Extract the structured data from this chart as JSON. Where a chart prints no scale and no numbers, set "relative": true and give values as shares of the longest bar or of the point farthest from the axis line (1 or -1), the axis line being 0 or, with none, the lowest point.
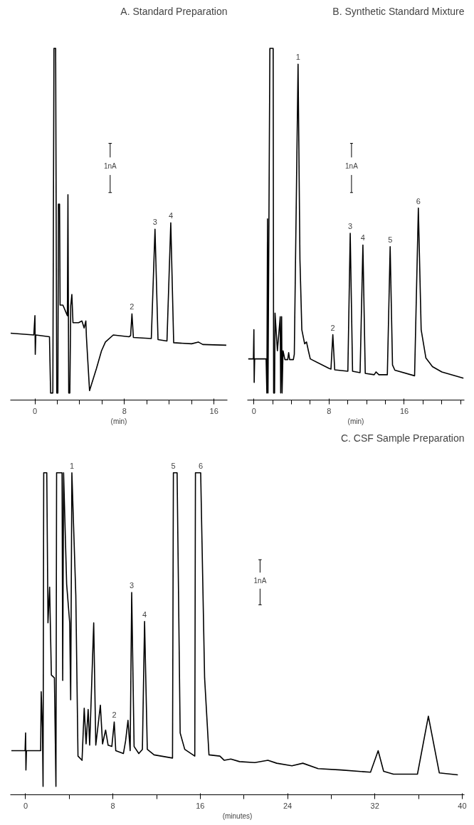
{
  "chart_data": [
    {
      "type": "line",
      "title": "A. Standard Preparation",
      "xlabel": "(min)",
      "relative": true,
      "xlim": [
        -2.2,
        17.2
      ],
      "xticks": [
        0,
        {
          "value": 2,
          "label": null
        },
        {
          "value": 4,
          "label": null
        },
        {
          "value": 6,
          "label": null
        },
        8,
        {
          "value": 10,
          "label": null
        },
        {
          "value": 12,
          "label": null
        },
        {
          "value": 14,
          "label": null
        },
        16
      ],
      "x": [
        -2.17,
        -0.1,
        0,
        0.03,
        0.08,
        1.3,
        1.4,
        1.6,
        1.7,
        1.85,
        1.95,
        2.05,
        2.1,
        2.2,
        2.25,
        2.5,
        2.9,
        2.95,
        3.02,
        3.12,
        3.2,
        3.3,
        3.4,
        3.9,
        4.2,
        4.4,
        4.55,
        4.6,
        4.88,
        5.5,
        5.95,
        6.3,
        7.0,
        8.4,
        8.55,
        8.67,
        8.8,
        10.4,
        10.73,
        11.0,
        11.8,
        12.14,
        12.4,
        14.0,
        14.6,
        15.0,
        16.0,
        17.1
      ],
      "series": [
        {
          "color": "#000000",
          "values": [
            0.19,
            0.185,
            0.24,
            0.13,
            0.185,
            0.18,
            0.02,
            0.02,
            1.0,
            1.0,
            0.02,
            0.02,
            0.557,
            0.557,
            0.27,
            0.27,
            0.24,
            0.584,
            0.02,
            0.02,
            0.268,
            0.3,
            0.22,
            0.22,
            0.225,
            0.205,
            0.225,
            0.18,
            0.027,
            0.09,
            0.14,
            0.165,
            0.185,
            0.18,
            0.183,
            0.245,
            0.178,
            0.175,
            0.486,
            0.172,
            0.168,
            0.504,
            0.163,
            0.16,
            0.165,
            0.158,
            0.157,
            0.156
          ]
        }
      ],
      "annotations": [
        "1nA",
        {
          "text": "2",
          "x": 8.67,
          "y": 0.245
        },
        {
          "text": "3",
          "x": 10.73,
          "y": 0.486
        },
        {
          "text": "4",
          "x": 12.14,
          "y": 0.504
        }
      ]
    },
    {
      "type": "line",
      "title": "B. Synthetic Standard Mixture",
      "xlabel": "(min)",
      "relative": true,
      "xlim": [
        -0.7,
        22.4
      ],
      "xticks": [
        0,
        {
          "value": 2,
          "label": null
        },
        {
          "value": 4,
          "label": null
        },
        {
          "value": 6,
          "label": null
        },
        8,
        {
          "value": 10,
          "label": null
        },
        {
          "value": 12,
          "label": null
        },
        {
          "value": 14,
          "label": null
        },
        16,
        {
          "value": 18,
          "label": null
        },
        {
          "value": 20,
          "label": null
        },
        {
          "value": 22,
          "label": null
        }
      ],
      "x": [
        -0.6,
        -0.05,
        0,
        0.03,
        0.08,
        1.3,
        1.38,
        1.45,
        1.5,
        1.7,
        2.05,
        2.1,
        2.2,
        2.25,
        2.5,
        2.8,
        2.85,
        2.95,
        3.0,
        3.1,
        3.3,
        3.6,
        3.7,
        3.8,
        4.2,
        4.3,
        4.7,
        4.9,
        5.1,
        5.4,
        5.6,
        5.8,
        6.0,
        8.0,
        8.2,
        8.4,
        8.6,
        10.0,
        10.25,
        10.5,
        11.3,
        11.6,
        11.85,
        12.8,
        13.0,
        13.3,
        14.2,
        14.5,
        14.75,
        15.0,
        17.1,
        17.5,
        17.8,
        18.3,
        19.0,
        20.0,
        22.3
      ],
      "series": [
        {
          "color": "#000000",
          "values": [
            0.117,
            0.117,
            0.2,
            0.05,
            0.117,
            0.117,
            0.02,
            0.515,
            0.02,
            1.0,
            1.0,
            0.02,
            0.02,
            0.247,
            0.14,
            0.237,
            0.02,
            0.237,
            0.02,
            0.14,
            0.115,
            0.115,
            0.135,
            0.115,
            0.115,
            0.13,
            0.955,
            0.4,
            0.2,
            0.16,
            0.165,
            0.14,
            0.117,
            0.09,
            0.088,
            0.186,
            0.086,
            0.082,
            0.474,
            0.082,
            0.078,
            0.441,
            0.076,
            0.072,
            0.08,
            0.072,
            0.072,
            0.436,
            0.1,
            0.085,
            0.069,
            0.546,
            0.2,
            0.12,
            0.095,
            0.08,
            0.062
          ]
        }
      ],
      "annotations": [
        "1nA",
        {
          "text": "1",
          "x": 4.7,
          "y": 0.955
        },
        {
          "text": "2",
          "x": 8.4,
          "y": 0.186
        },
        {
          "text": "3",
          "x": 10.25,
          "y": 0.474
        },
        {
          "text": "4",
          "x": 11.6,
          "y": 0.441
        },
        {
          "text": "5",
          "x": 14.5,
          "y": 0.436
        },
        {
          "text": "6",
          "x": 17.5,
          "y": 0.546
        }
      ]
    },
    {
      "type": "line",
      "title": "C. CSF Sample Preparation",
      "xlabel": "(minutes)",
      "relative": true,
      "xlim": [
        -1.4,
        40.2
      ],
      "xticks": [
        0,
        {
          "value": 4,
          "label": null
        },
        8,
        {
          "value": 12,
          "label": null
        },
        16,
        {
          "value": 20,
          "label": null
        },
        24,
        {
          "value": 28,
          "label": null
        },
        32,
        {
          "value": 36,
          "label": null
        },
        40
      ],
      "x": [
        -1.3,
        -0.05,
        0,
        0.03,
        0.08,
        1.38,
        1.43,
        1.54,
        1.6,
        1.66,
        1.94,
        2.05,
        2.2,
        2.36,
        2.64,
        2.78,
        2.84,
        3.34,
        3.4,
        3.48,
        3.76,
        4.04,
        4.13,
        4.24,
        4.6,
        4.8,
        5.17,
        5.37,
        5.54,
        5.73,
        5.87,
        6.24,
        6.43,
        6.85,
        7.05,
        7.33,
        7.56,
        7.9,
        8.12,
        8.26,
        8.96,
        9.16,
        9.38,
        9.58,
        9.72,
        9.94,
        10.37,
        10.7,
        10.9,
        11.15,
        11.77,
        13.46,
        13.54,
        13.88,
        14.16,
        14.58,
        15.5,
        15.56,
        16.04,
        16.4,
        16.8,
        17.8,
        18.2,
        18.8,
        19.6,
        21.0,
        22.2,
        23.0,
        24.4,
        25.4,
        26.8,
        28.9,
        31.6,
        32.3,
        32.8,
        33.7,
        35.9,
        36.9,
        37.9,
        39.6
      ],
      "series": [
        {
          "color": "#000000",
          "values": [
            0.137,
            0.137,
            0.192,
            0.077,
            0.137,
            0.137,
            0.32,
            0.209,
            0.026,
            1.0,
            1.0,
            0.534,
            0.645,
            0.372,
            0.363,
            0.026,
            1.0,
            1.0,
            0.355,
            1.0,
            0.654,
            0.534,
            0.295,
            1.0,
            0.62,
            0.12,
            0.107,
            0.269,
            0.158,
            0.265,
            0.154,
            0.534,
            0.154,
            0.278,
            0.158,
            0.201,
            0.154,
            0.15,
            0.226,
            0.137,
            0.128,
            0.167,
            0.231,
            0.137,
            0.628,
            0.15,
            0.128,
            0.141,
            0.538,
            0.141,
            0.124,
            0.114,
            1.0,
            1.0,
            0.192,
            0.141,
            0.12,
            1.0,
            1.0,
            0.363,
            0.124,
            0.12,
            0.107,
            0.111,
            0.103,
            0.1,
            0.107,
            0.098,
            0.09,
            0.098,
            0.081,
            0.077,
            0.07,
            0.137,
            0.073,
            0.064,
            0.064,
            0.244,
            0.068,
            0.062
          ]
        }
      ],
      "annotations": [
        "1nA",
        {
          "text": "1",
          "x": 4.24,
          "y": 1.0
        },
        {
          "text": "2",
          "x": 8.12,
          "y": 0.226
        },
        {
          "text": "3",
          "x": 9.72,
          "y": 0.628
        },
        {
          "text": "4",
          "x": 10.9,
          "y": 0.538
        },
        {
          "text": "5",
          "x": 13.54,
          "y": 1.0
        },
        {
          "text": "6",
          "x": 16.04,
          "y": 1.0
        }
      ]
    }
  ]
}
